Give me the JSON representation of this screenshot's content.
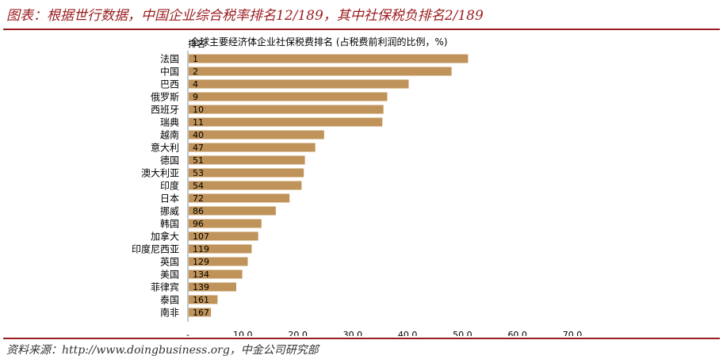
{
  "figure": {
    "title": "图表：根据世行数据，中国企业综合税率排名12/189，其中社保税负排名2/189",
    "source": "资料来源：http://www.doingbusiness.org，中金公司研究部"
  },
  "colors": {
    "bar": "#c0935a",
    "accent": "#9a1c1f",
    "axis": "#888888"
  },
  "chart_data": {
    "type": "bar",
    "orientation": "horizontal",
    "title": "全球主要经济体企业社保税费排名 (占税费前利润的比例，%)",
    "rank_header": "排名",
    "categories": [
      "法国",
      "中国",
      "巴西",
      "俄罗斯",
      "西班牙",
      "瑞典",
      "越南",
      "意大利",
      "德国",
      "澳大利亚",
      "印度",
      "日本",
      "挪威",
      "韩国",
      "加拿大",
      "印度尼西亚",
      "英国",
      "美国",
      "菲律宾",
      "泰国",
      "南非"
    ],
    "ranks": [
      "1",
      "2",
      "4",
      "9",
      "10",
      "11",
      "40",
      "47",
      "51",
      "53",
      "54",
      "72",
      "86",
      "96",
      "107",
      "119",
      "129",
      "134",
      "139",
      "161",
      "167"
    ],
    "values": [
      51.0,
      48.0,
      40.2,
      36.3,
      35.6,
      35.4,
      24.8,
      23.2,
      21.3,
      21.1,
      20.7,
      18.5,
      16.0,
      13.4,
      12.8,
      11.6,
      10.9,
      9.9,
      8.8,
      5.4,
      4.2
    ],
    "xlim": [
      0,
      70
    ],
    "xticks": [
      0,
      10,
      20,
      30,
      40,
      50,
      60,
      70
    ],
    "xtick_labels": [
      "-",
      "10.0",
      "20.0",
      "30.0",
      "40.0",
      "50.0",
      "60.0",
      "70.0"
    ],
    "grid": false,
    "legend": "none"
  }
}
